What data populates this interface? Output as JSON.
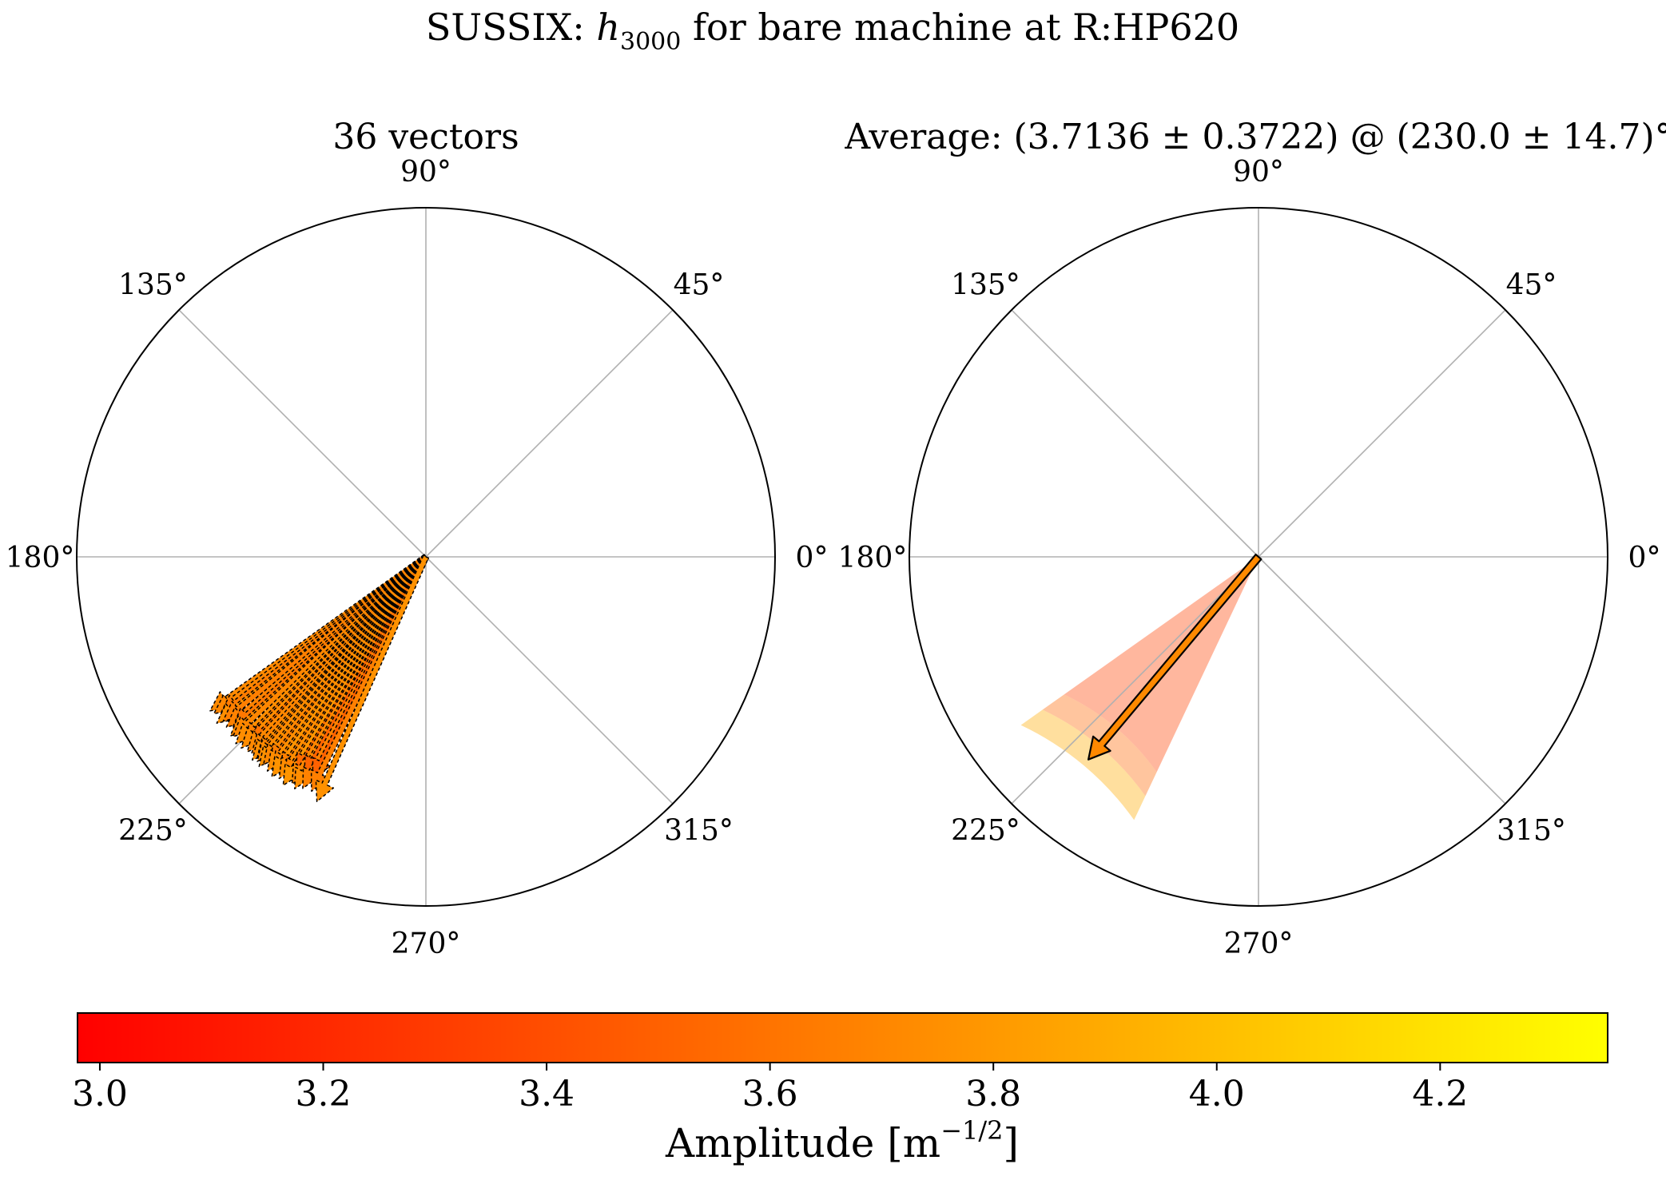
{
  "figure": {
    "title_prefix": "SUSSIX: ",
    "title_symbol": "h",
    "title_subscript": "3000",
    "title_suffix": " for bare machine at R:HP620"
  },
  "left_panel": {
    "title": "36 vectors"
  },
  "right_panel": {
    "title": "Average: (3.7136 ± 0.3722) @ (230.0 ± 14.7)°"
  },
  "angle_labels": [
    "0°",
    "45°",
    "90°",
    "135°",
    "180°",
    "225°",
    "270°",
    "315°"
  ],
  "colorbar": {
    "label_text": "Amplitude [m",
    "label_exponent": "−1/2",
    "label_close": "]",
    "ticks": [
      "3.0",
      "3.2",
      "3.4",
      "3.6",
      "3.8",
      "4.0",
      "4.2"
    ],
    "colormap": "autumn",
    "colors": {
      "min": "#ff0000",
      "max": "#ffff00"
    }
  },
  "chart_data": [
    {
      "type": "polar-vectors",
      "title": "36 vectors",
      "r_max": 4.9,
      "color_range": [
        2.98,
        4.35
      ],
      "theta_ticks_deg": [
        0,
        45,
        90,
        135,
        180,
        225,
        270,
        315
      ],
      "radial_tick_labels": "none",
      "vectors": [
        {
          "angle": 215.5,
          "amp": 3.72
        },
        {
          "angle": 216.5,
          "amp": 3.7
        },
        {
          "angle": 217.5,
          "amp": 3.64
        },
        {
          "angle": 218.5,
          "amp": 3.75
        },
        {
          "angle": 219.0,
          "amp": 3.66
        },
        {
          "angle": 220.5,
          "amp": 3.68
        },
        {
          "angle": 221.5,
          "amp": 3.62
        },
        {
          "angle": 222.5,
          "amp": 3.72
        },
        {
          "angle": 223.0,
          "amp": 3.7
        },
        {
          "angle": 224.5,
          "amp": 3.74
        },
        {
          "angle": 225.5,
          "amp": 3.66
        },
        {
          "angle": 226.0,
          "amp": 3.73
        },
        {
          "angle": 227.0,
          "amp": 3.6
        },
        {
          "angle": 227.5,
          "amp": 3.71
        },
        {
          "angle": 228.5,
          "amp": 3.69
        },
        {
          "angle": 229.5,
          "amp": 3.75
        },
        {
          "angle": 230.0,
          "amp": 3.68
        },
        {
          "angle": 230.5,
          "amp": 3.72
        },
        {
          "angle": 231.5,
          "amp": 3.76
        },
        {
          "angle": 232.0,
          "amp": 3.7
        },
        {
          "angle": 233.0,
          "amp": 3.65
        },
        {
          "angle": 233.5,
          "amp": 3.74
        },
        {
          "angle": 234.5,
          "amp": 3.71
        },
        {
          "angle": 235.0,
          "amp": 3.77
        },
        {
          "angle": 236.0,
          "amp": 3.66
        },
        {
          "angle": 236.5,
          "amp": 3.73
        },
        {
          "angle": 237.5,
          "amp": 3.69
        },
        {
          "angle": 238.0,
          "amp": 3.78
        },
        {
          "angle": 239.0,
          "amp": 3.55
        },
        {
          "angle": 239.5,
          "amp": 3.7
        },
        {
          "angle": 240.5,
          "amp": 3.74
        },
        {
          "angle": 241.0,
          "amp": 3.52
        },
        {
          "angle": 242.0,
          "amp": 3.68
        },
        {
          "angle": 243.0,
          "amp": 3.5
        },
        {
          "angle": 244.0,
          "amp": 3.66
        },
        {
          "angle": 246.0,
          "amp": 3.76
        }
      ]
    },
    {
      "type": "polar-vector-average",
      "title": "Average: (3.7136 ± 0.3722) @ (230.0 ± 14.7)°",
      "r_max": 4.9,
      "mean_amplitude": 3.7136,
      "amplitude_std": 0.3722,
      "mean_angle_deg": 230.0,
      "angle_std_deg": 14.7,
      "theta_ticks_deg": [
        0,
        45,
        90,
        135,
        180,
        225,
        270,
        315
      ],
      "uncertainty_bands": [
        {
          "amp_from": 0,
          "amp_to": 3.3414,
          "angle_from": 215.3,
          "angle_to": 244.7
        },
        {
          "amp_from": 3.3414,
          "amp_to": 3.7136,
          "angle_from": 215.3,
          "angle_to": 244.7
        },
        {
          "amp_from": 3.7136,
          "amp_to": 4.0858,
          "angle_from": 215.3,
          "angle_to": 244.7
        }
      ]
    }
  ]
}
